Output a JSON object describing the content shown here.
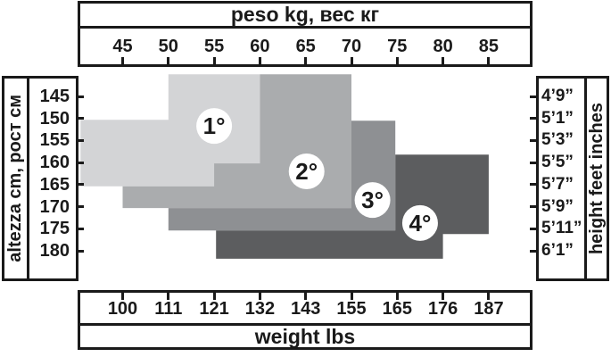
{
  "chart_data": {
    "type": "area",
    "x_axis_top": {
      "label": "peso kg, вес кг",
      "unit": "kg",
      "ticks": [
        45,
        50,
        55,
        60,
        65,
        70,
        75,
        80,
        85
      ]
    },
    "x_axis_bottom": {
      "label": "weight lbs",
      "unit": "lbs",
      "ticks": [
        100,
        111,
        121,
        132,
        143,
        155,
        165,
        176,
        187
      ]
    },
    "y_axis_left": {
      "label": "altezza cm, рост см",
      "unit": "cm",
      "ticks": [
        145,
        150,
        155,
        160,
        165,
        170,
        175,
        180
      ]
    },
    "y_axis_right": {
      "label": "height feet inches",
      "unit": "feet-inches",
      "ticks": [
        "4’9”",
        "5’1”",
        "5’3”",
        "5’5”",
        "5’7”",
        "5’9”",
        "5’11”",
        "6’1”"
      ]
    },
    "regions": [
      {
        "label": "1°",
        "color": "#d3d4d6",
        "polygon_kg_cm": [
          [
            50,
            140
          ],
          [
            60,
            140
          ],
          [
            60,
            165.4
          ],
          [
            40.4,
            165.4
          ],
          [
            40.4,
            150.3
          ],
          [
            50,
            150.3
          ]
        ],
        "badge": {
          "kg": 55.0,
          "cm": 151.7
        }
      },
      {
        "label": "2°",
        "color": "#aaacae",
        "polygon_kg_cm": [
          [
            55,
            160.2
          ],
          [
            60,
            160.2
          ],
          [
            60,
            140
          ],
          [
            70,
            140
          ],
          [
            70,
            170.3
          ],
          [
            45,
            170.3
          ],
          [
            45,
            165.4
          ],
          [
            55,
            165.4
          ]
        ],
        "badge": {
          "kg": 65.1,
          "cm": 162.0
        }
      },
      {
        "label": "3°",
        "color": "#8e9093",
        "polygon_kg_cm": [
          [
            70,
            150.5
          ],
          [
            74.8,
            150.5
          ],
          [
            74.8,
            175.4
          ],
          [
            50,
            175.4
          ],
          [
            50,
            170.3
          ],
          [
            70,
            170.3
          ]
        ],
        "badge": {
          "kg": 72.3,
          "cm": 168.5
        }
      },
      {
        "label": "4°",
        "color": "#5c5d5f",
        "polygon_kg_cm": [
          [
            74.8,
            158.2
          ],
          [
            85,
            158.2
          ],
          [
            85,
            176.2
          ],
          [
            80,
            176.2
          ],
          [
            80,
            181.8
          ],
          [
            55.2,
            181.8
          ],
          [
            55.2,
            175.4
          ],
          [
            74.8,
            175.4
          ]
        ],
        "badge": {
          "kg": 77.5,
          "cm": 173.7
        }
      }
    ],
    "badge_text_color": "#1a1a1a",
    "badge_fill": "#ffffff"
  }
}
